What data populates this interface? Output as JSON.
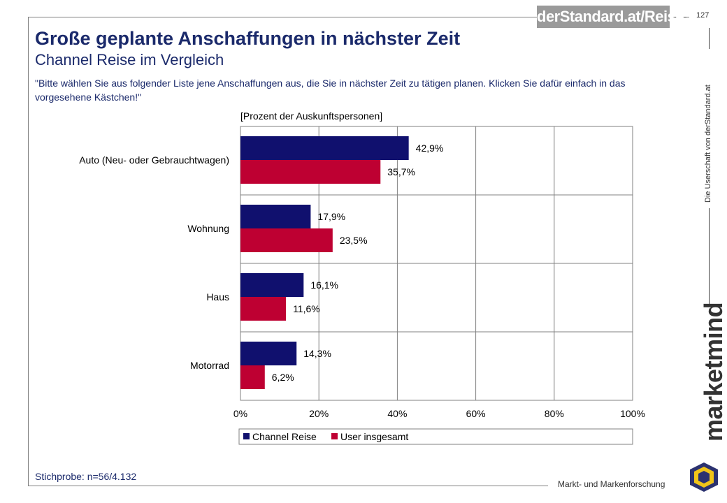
{
  "header": {
    "brand_logo": "derStandard.at/Reise",
    "page_number": "127"
  },
  "slide": {
    "title": "Große geplante Anschaffungen in nächster Zeit",
    "subtitle": "Channel Reise im Vergleich",
    "question": "\"Bitte wählen Sie aus folgender Liste jene Anschaffungen aus, die Sie in nächster Zeit zu tätigen planen. Klicken Sie dafür einfach in das vorgesehene Kästchen!\"",
    "sample": "Stichprobe: n=56/4.132"
  },
  "side": {
    "source_text": "Die Userschaft von derStandard.at",
    "brand": "marketmind",
    "footer_text": "Markt- und Markenforschung"
  },
  "colors": {
    "series_a": "#10106e",
    "series_b": "#be0032",
    "title": "#1b2a6b",
    "grid": "#808080"
  },
  "chart_data": {
    "type": "bar",
    "orientation": "horizontal",
    "title": "[Prozent der Auskunftspersonen]",
    "categories": [
      "Auto (Neu- oder Gebrauchtwagen)",
      "Wohnung",
      "Haus",
      "Motorrad"
    ],
    "series": [
      {
        "name": "Channel Reise",
        "values": [
          42.9,
          17.9,
          16.1,
          14.3
        ],
        "labels": [
          "42,9%",
          "17,9%",
          "16,1%",
          "14,3%"
        ]
      },
      {
        "name": "User insgesamt",
        "values": [
          35.7,
          23.5,
          11.6,
          6.2
        ],
        "labels": [
          "35,7%",
          "23,5%",
          "11,6%",
          "6,2%"
        ]
      }
    ],
    "xlim": [
      0,
      100
    ],
    "x_ticks": [
      0,
      20,
      40,
      60,
      80,
      100
    ],
    "x_tick_labels": [
      "0%",
      "20%",
      "40%",
      "60%",
      "80%",
      "100%"
    ],
    "grid": true,
    "legend_position": "bottom"
  }
}
